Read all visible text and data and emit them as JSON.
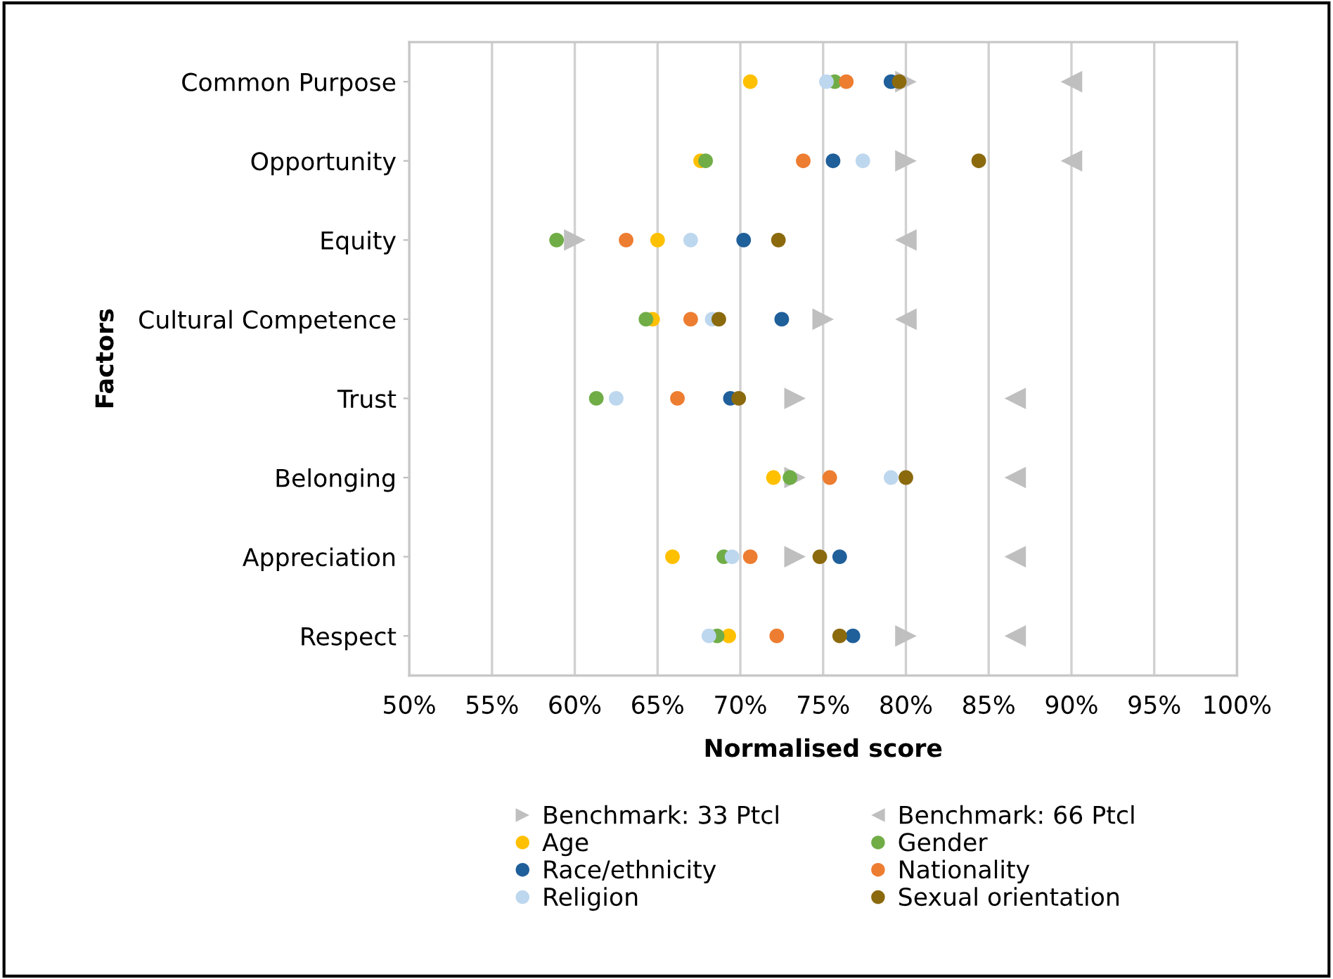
{
  "chart_data": {
    "type": "scatter",
    "xlabel": "Normalised score",
    "ylabel": "Factors",
    "categories": [
      "Common Purpose",
      "Opportunity",
      "Equity",
      "Cultural Competence",
      "Trust",
      "Belonging",
      "Appreciation",
      "Respect"
    ],
    "orientation": "horizontal",
    "xlim": [
      50,
      100
    ],
    "xticks": [
      {
        "value": 50,
        "label": "50%"
      },
      {
        "value": 55,
        "label": "55%"
      },
      {
        "value": 60,
        "label": "60%"
      },
      {
        "value": 65,
        "label": "65%"
      },
      {
        "value": 70,
        "label": "70%"
      },
      {
        "value": 75,
        "label": "75%"
      },
      {
        "value": 80,
        "label": "80%"
      },
      {
        "value": 85,
        "label": "85%"
      },
      {
        "value": 90,
        "label": "90%"
      },
      {
        "value": 95,
        "label": "95%"
      },
      {
        "value": 100,
        "label": "100%"
      }
    ],
    "grid": "x",
    "legend": "bottom",
    "series": [
      {
        "name": "Benchmark: 33 Ptcl",
        "color": "#bfbfbf",
        "marker": "triangle_right",
        "values": [
          80.0,
          80.0,
          60.0,
          75.0,
          73.3,
          73.3,
          73.3,
          80.0
        ]
      },
      {
        "name": "Benchmark: 66 Ptcl",
        "color": "#bfbfbf",
        "marker": "triangle_left",
        "values": [
          90.0,
          90.0,
          80.0,
          80.0,
          86.6,
          86.6,
          86.6,
          86.6
        ]
      },
      {
        "name": "Age",
        "color": "#ffc000",
        "marker": "circle",
        "values": [
          70.6,
          67.6,
          65.0,
          64.7,
          null,
          72.0,
          65.9,
          69.3
        ]
      },
      {
        "name": "Gender",
        "color": "#70ad47",
        "marker": "circle",
        "values": [
          75.7,
          67.9,
          58.9,
          64.3,
          61.3,
          73.0,
          69.0,
          68.6
        ]
      },
      {
        "name": "Race/ethnicity",
        "color": "#1f5f9a",
        "marker": "circle",
        "values": [
          79.1,
          75.6,
          70.2,
          72.5,
          69.4,
          null,
          76.0,
          76.8
        ]
      },
      {
        "name": "Nationality",
        "color": "#ed7d31",
        "marker": "circle",
        "values": [
          76.4,
          73.8,
          63.1,
          67.0,
          66.2,
          75.4,
          70.6,
          72.2
        ]
      },
      {
        "name": "Religion",
        "color": "#bdd7ee",
        "marker": "circle",
        "values": [
          75.2,
          77.4,
          67.0,
          68.3,
          62.5,
          79.1,
          69.5,
          68.1
        ]
      },
      {
        "name": "Sexual orientation",
        "color": "#8b6a0e",
        "marker": "circle",
        "values": [
          79.6,
          84.4,
          72.3,
          68.7,
          69.9,
          80.0,
          74.8,
          76.0
        ]
      }
    ]
  }
}
